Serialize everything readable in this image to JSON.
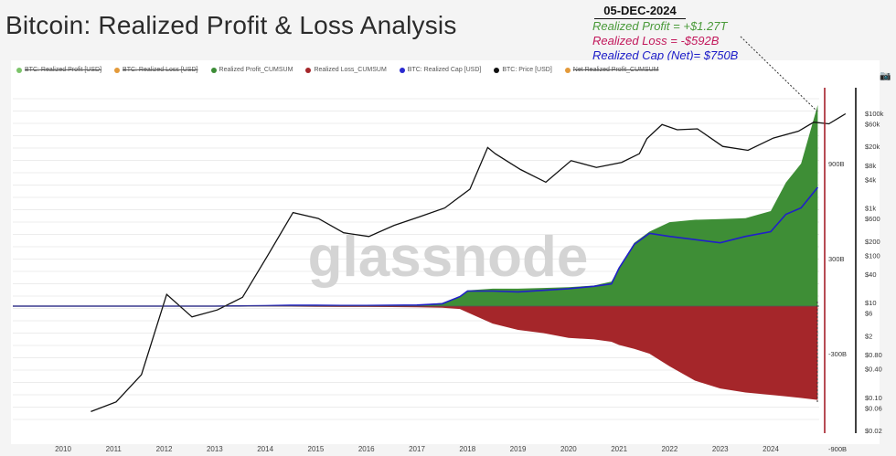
{
  "title": "Bitcoin: Realized Profit & Loss Analysis",
  "annotation": {
    "date": "05-DEC-2024",
    "realized_profit": "Realized Profit = +$1.27T",
    "realized_loss": "Realized Loss = -$592B",
    "realized_cap": "Realized Cap (Net)= $750B"
  },
  "watermark": "glassnode",
  "legend": [
    {
      "label": "BTC: Realized Profit [USD]",
      "color": "#7cc46a",
      "struck": true
    },
    {
      "label": "BTC: Realized Loss [USD]",
      "color": "#e39a3a",
      "struck": true
    },
    {
      "label": "Realized Profit_CUMSUM",
      "color": "#3c8c36",
      "struck": false
    },
    {
      "label": "Realized Loss_CUMSUM",
      "color": "#a5262a",
      "struck": false
    },
    {
      "label": "BTC: Realized Cap [USD]",
      "color": "#2a2ad0",
      "struck": false
    },
    {
      "label": "BTC: Price [USD]",
      "color": "#111111",
      "struck": false
    },
    {
      "label": "Net Realized Profit_CUMSUM",
      "color": "#e39a3a",
      "struck": true
    }
  ],
  "chart_data": {
    "type": "area",
    "title": "Bitcoin: Realized Profit & Loss Analysis",
    "x_ticks": [
      "2010",
      "2011",
      "2012",
      "2013",
      "2014",
      "2015",
      "2016",
      "2017",
      "2018",
      "2019",
      "2020",
      "2021",
      "2022",
      "2023",
      "2024"
    ],
    "left_axis": {
      "ticks": [
        "900B",
        "300B",
        "-300B",
        "-900B"
      ],
      "range": [
        -900,
        900
      ],
      "unit": "B USD"
    },
    "right_axis": {
      "scale": "log",
      "ticks": [
        "$100k",
        "$60k",
        "$20k",
        "$8k",
        "$4k",
        "$1k",
        "$600",
        "$200",
        "$100",
        "$40",
        "$10",
        "$6",
        "$2",
        "$0.80",
        "$0.40",
        "$0.10",
        "$0.06",
        "$0.02"
      ]
    },
    "x": [
      2010.0,
      2010.5,
      2011.0,
      2011.5,
      2012.0,
      2012.5,
      2013.0,
      2013.5,
      2014.0,
      2014.5,
      2015.0,
      2015.5,
      2016.0,
      2016.5,
      2017.0,
      2017.5,
      2017.85,
      2018.0,
      2018.5,
      2019.0,
      2019.5,
      2020.0,
      2020.5,
      2020.85,
      2021.0,
      2021.3,
      2021.6,
      2022.0,
      2022.5,
      2023.0,
      2023.5,
      2024.0,
      2024.3,
      2024.6,
      2024.93
    ],
    "series": [
      {
        "name": "Realized Profit_CUMSUM",
        "unit": "B USD",
        "values": [
          0,
          0,
          0,
          0.1,
          0.2,
          0.3,
          0.5,
          1,
          2,
          3,
          4,
          4,
          5,
          6,
          8,
          20,
          60,
          100,
          110,
          110,
          115,
          120,
          130,
          155,
          240,
          400,
          470,
          530,
          545,
          550,
          555,
          600,
          780,
          900,
          1270
        ]
      },
      {
        "name": "Realized Loss_CUMSUM",
        "unit": "B USD",
        "values": [
          0,
          0,
          0,
          -0.1,
          -0.2,
          -0.3,
          -0.5,
          -1,
          -2,
          -3,
          -4,
          -5,
          -5,
          -6,
          -7,
          -10,
          -18,
          -40,
          -110,
          -150,
          -170,
          -200,
          -210,
          -225,
          -245,
          -270,
          -300,
          -380,
          -470,
          -520,
          -545,
          -560,
          -570,
          -580,
          -592
        ]
      },
      {
        "name": "BTC: Realized Cap [USD]",
        "unit": "B USD",
        "values": [
          0,
          0,
          0,
          0.1,
          0.1,
          0.1,
          0.2,
          1,
          3,
          5,
          5,
          4,
          4,
          5,
          7,
          15,
          60,
          95,
          95,
          90,
          100,
          110,
          125,
          140,
          240,
          390,
          460,
          440,
          420,
          400,
          440,
          470,
          580,
          620,
          750
        ]
      },
      {
        "name": "BTC: Price [USD]",
        "unit": "USD",
        "values": [
          0.05,
          0.08,
          0.3,
          15,
          5,
          7,
          13,
          100,
          800,
          600,
          300,
          250,
          430,
          650,
          1000,
          2500,
          19000,
          14000,
          6500,
          3500,
          10000,
          7200,
          9200,
          14000,
          29000,
          58000,
          45000,
          47000,
          20000,
          16500,
          30000,
          42000,
          65000,
          60000,
          98000
        ]
      }
    ]
  }
}
